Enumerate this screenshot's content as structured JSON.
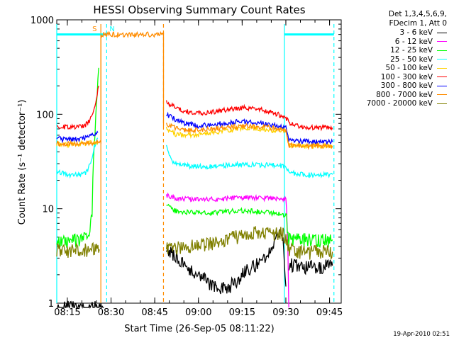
{
  "chart_data": {
    "type": "line",
    "title": "HESSI Observing Summary Count Rates",
    "xlabel": "Start Time (26-Sep-05 08:11:22)",
    "ylabel": "Count Rate (s⁻¹ detector⁻¹)",
    "yscale": "log",
    "ylim": [
      1,
      1000
    ],
    "xlim": [
      "08:11:22",
      "09:49:00"
    ],
    "x_ticks": [
      "08:15",
      "08:30",
      "08:45",
      "09:00",
      "09:15",
      "09:30",
      "09:45"
    ],
    "y_ticks": [
      "1",
      "10",
      "100",
      "1000"
    ],
    "legend_header": [
      "Det 1,3,4,5,6,9,",
      "FDecim 1, Att 0"
    ],
    "series": [
      {
        "name": "3 - 6 keV",
        "color": "#000000",
        "segments": [
          [
            [
              "08:11:22",
              0.9
            ],
            [
              "08:25:00",
              0.9
            ],
            [
              "08:27:30",
              0.9
            ]
          ],
          [
            [
              "08:49:00",
              4.0
            ],
            [
              "08:52:00",
              3.2
            ],
            [
              "08:55:00",
              2.5
            ],
            [
              "09:00:00",
              2.0
            ],
            [
              "09:05:00",
              1.5
            ],
            [
              "09:10:00",
              1.4
            ],
            [
              "09:15:00",
              2.0
            ],
            [
              "09:20:00",
              2.6
            ],
            [
              "09:25:00",
              3.6
            ],
            [
              "09:27:30",
              5.5
            ],
            [
              "09:29:00",
              4.6
            ],
            [
              "09:30:00",
              1.5
            ]
          ],
          [
            [
              "09:31:00",
              2.6
            ],
            [
              "09:36:00",
              2.4
            ],
            [
              "09:40:00",
              2.4
            ],
            [
              "09:44:00",
              2.5
            ],
            [
              "09:46:00",
              2.5
            ]
          ]
        ]
      },
      {
        "name": "6 - 12 keV",
        "color": "#ff00ff",
        "segments": [
          [
            [
              "08:49:00",
              14
            ],
            [
              "08:52:00",
              13
            ],
            [
              "08:55:00",
              12.8
            ],
            [
              "09:00:00",
              12.5
            ],
            [
              "09:05:00",
              12.6
            ],
            [
              "09:10:00",
              12.8
            ],
            [
              "09:15:00",
              13.2
            ],
            [
              "09:20:00",
              13.0
            ],
            [
              "09:25:00",
              12.9
            ],
            [
              "09:30:00",
              12.6
            ],
            [
              "09:31:00",
              0.9
            ]
          ]
        ]
      },
      {
        "name": "12 - 25 keV",
        "color": "#00ff00",
        "segments": [
          [
            [
              "08:11:22",
              4.6
            ],
            [
              "08:15:00",
              4.6
            ],
            [
              "08:20:00",
              4.7
            ],
            [
              "08:22:00",
              5.0
            ],
            [
              "08:23:30",
              8.0
            ],
            [
              "08:24:30",
              60
            ],
            [
              "08:25:15",
              160
            ],
            [
              "08:25:45",
              310
            ]
          ],
          [
            [
              "08:49:00",
              11
            ],
            [
              "08:52:00",
              9.5
            ],
            [
              "08:55:00",
              9.2
            ],
            [
              "09:00:00",
              9.0
            ],
            [
              "09:05:00",
              9.1
            ],
            [
              "09:10:00",
              9.3
            ],
            [
              "09:15:00",
              9.6
            ],
            [
              "09:20:00",
              9.4
            ],
            [
              "09:25:00",
              9.0
            ],
            [
              "09:30:00",
              8.6
            ],
            [
              "09:31:00",
              4.7
            ],
            [
              "09:36:00",
              4.7
            ],
            [
              "09:40:00",
              4.7
            ],
            [
              "09:46:00",
              4.7
            ]
          ]
        ]
      },
      {
        "name": "25 - 50 keV",
        "color": "#00ffff",
        "segments": [
          [
            [
              "08:11:22",
              25
            ],
            [
              "08:15:00",
              23
            ],
            [
              "08:20:00",
              23
            ],
            [
              "08:22:00",
              25
            ],
            [
              "08:23:30",
              35
            ],
            [
              "08:24:30",
              48
            ],
            [
              "08:25:30",
              56
            ]
          ],
          [
            [
              "08:49:00",
              45
            ],
            [
              "08:50:30",
              33
            ],
            [
              "08:53:00",
              30
            ],
            [
              "08:58:00",
              28
            ],
            [
              "09:05:00",
              28
            ],
            [
              "09:10:00",
              29
            ],
            [
              "09:15:00",
              30
            ],
            [
              "09:20:00",
              29
            ],
            [
              "09:25:00",
              29
            ],
            [
              "09:30:00",
              28
            ],
            [
              "09:31:00",
              24
            ],
            [
              "09:36:00",
              23
            ],
            [
              "09:40:00",
              23
            ],
            [
              "09:46:00",
              23
            ]
          ]
        ]
      },
      {
        "name": "50 - 100 keV",
        "color": "#ffd200",
        "segments": [
          [
            [
              "08:11:22",
              49
            ],
            [
              "08:15:00",
              48
            ],
            [
              "08:20:00",
              49
            ],
            [
              "08:25:30",
              50
            ]
          ],
          [
            [
              "08:49:00",
              70
            ],
            [
              "08:52:00",
              62
            ],
            [
              "08:55:00",
              60
            ],
            [
              "09:00:00",
              61
            ],
            [
              "09:05:00",
              64
            ],
            [
              "09:10:00",
              68
            ],
            [
              "09:15:00",
              72
            ],
            [
              "09:20:00",
              71
            ],
            [
              "09:25:00",
              68
            ],
            [
              "09:30:00",
              66
            ],
            [
              "09:31:00",
              47
            ],
            [
              "09:36:00",
              46
            ],
            [
              "09:40:00",
              46
            ],
            [
              "09:46:00",
              46
            ]
          ]
        ]
      },
      {
        "name": "100 - 300 keV",
        "color": "#ff0000",
        "segments": [
          [
            [
              "08:11:22",
              76
            ],
            [
              "08:15:00",
              73
            ],
            [
              "08:20:00",
              74
            ],
            [
              "08:22:00",
              80
            ],
            [
              "08:23:30",
              95
            ],
            [
              "08:24:30",
              115
            ],
            [
              "08:25:45",
              200
            ]
          ],
          [
            [
              "08:49:00",
              135
            ],
            [
              "08:52:00",
              118
            ],
            [
              "08:55:00",
              108
            ],
            [
              "09:00:00",
              102
            ],
            [
              "09:05:00",
              106
            ],
            [
              "09:10:00",
              112
            ],
            [
              "09:15:00",
              118
            ],
            [
              "09:20:00",
              115
            ],
            [
              "09:25:00",
              106
            ],
            [
              "09:30:00",
              92
            ],
            [
              "09:32:00",
              78
            ],
            [
              "09:36:00",
              74
            ],
            [
              "09:40:00",
              72
            ],
            [
              "09:46:00",
              72
            ]
          ]
        ]
      },
      {
        "name": "300 - 800 keV",
        "color": "#0000ff",
        "segments": [
          [
            [
              "08:11:22",
              55
            ],
            [
              "08:15:00",
              54
            ],
            [
              "08:20:00",
              55
            ],
            [
              "08:25:30",
              64
            ]
          ],
          [
            [
              "08:49:00",
              100
            ],
            [
              "08:52:00",
              88
            ],
            [
              "08:55:00",
              80
            ],
            [
              "09:00:00",
              76
            ],
            [
              "09:05:00",
              78
            ],
            [
              "09:10:00",
              82
            ],
            [
              "09:15:00",
              84
            ],
            [
              "09:20:00",
              81
            ],
            [
              "09:25:00",
              78
            ],
            [
              "09:30:00",
              73
            ],
            [
              "09:31:00",
              53
            ],
            [
              "09:36:00",
              52
            ],
            [
              "09:40:00",
              51
            ],
            [
              "09:46:00",
              51
            ]
          ]
        ]
      },
      {
        "name": "800 - 7000 keV",
        "color": "#ff8c00",
        "segments": [
          [
            [
              "08:11:22",
              49
            ],
            [
              "08:15:00",
              49
            ],
            [
              "08:20:00",
              49
            ],
            [
              "08:25:00",
              50
            ],
            [
              "08:26:30",
              50
            ],
            [
              "08:26:30",
              700
            ],
            [
              "08:48:00",
              700
            ],
            [
              "08:48:00",
              75
            ]
          ],
          [
            [
              "08:49:00",
              78
            ],
            [
              "08:52:00",
              72
            ],
            [
              "08:55:00",
              68
            ],
            [
              "09:00:00",
              68
            ],
            [
              "09:05:00",
              70
            ],
            [
              "09:10:00",
              73
            ],
            [
              "09:15:00",
              75
            ],
            [
              "09:20:00",
              74
            ],
            [
              "09:25:00",
              72
            ],
            [
              "09:30:00",
              68
            ],
            [
              "09:31:00",
              47
            ],
            [
              "09:36:00",
              46
            ],
            [
              "09:40:00",
              46
            ],
            [
              "09:46:00",
              46
            ]
          ]
        ]
      },
      {
        "name": "7000 - 20000 keV",
        "color": "#808000",
        "segments": [
          [
            [
              "08:11:22",
              3.7
            ],
            [
              "08:15:00",
              3.6
            ],
            [
              "08:20:00",
              3.7
            ],
            [
              "08:25:00",
              3.7
            ],
            [
              "08:26:00",
              3.7
            ]
          ],
          [
            [
              "08:49:00",
              3.8
            ],
            [
              "08:55:00",
              3.9
            ],
            [
              "09:00:00",
              4.1
            ],
            [
              "09:05:00",
              4.4
            ],
            [
              "09:10:00",
              4.8
            ],
            [
              "09:15:00",
              5.2
            ],
            [
              "09:20:00",
              5.6
            ],
            [
              "09:25:00",
              5.5
            ],
            [
              "09:29:00",
              5.5
            ],
            [
              "09:31:00",
              3.7
            ],
            [
              "09:36:00",
              3.5
            ],
            [
              "09:40:00",
              3.5
            ],
            [
              "09:46:00",
              3.5
            ]
          ]
        ]
      }
    ],
    "annotations": [
      {
        "label": "S",
        "color": "#ff8c00",
        "kind": "solid",
        "x": "08:26:30"
      },
      {
        "label": "",
        "color": "#ff8c00",
        "kind": "dashed",
        "x": "08:48:00"
      },
      {
        "label": "N",
        "color": "#00ffff",
        "kind": "dashed",
        "x": "08:28:30"
      },
      {
        "label": "",
        "color": "#00ffff",
        "kind": "solid",
        "x": "08:11:22"
      },
      {
        "label": "",
        "color": "#00ffff",
        "kind": "solid",
        "x": "09:29:30"
      },
      {
        "label": "",
        "color": "#00ffff",
        "kind": "dashed",
        "x": "09:46:30"
      }
    ],
    "cyan_night_bars": [
      [
        "08:11:22",
        "08:28:30"
      ],
      [
        "09:29:30",
        "09:46:30"
      ]
    ],
    "cyan_bar_value": 700
  },
  "footer_date": "19-Apr-2010 02:51"
}
